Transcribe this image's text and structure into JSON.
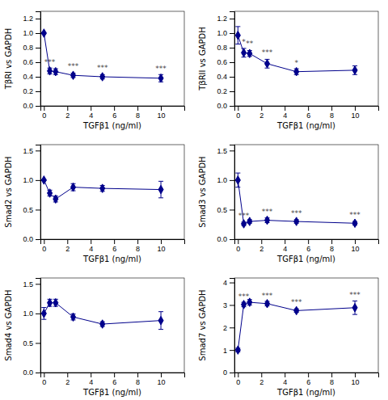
{
  "chart_data": [
    {
      "type": "line",
      "marker": "diamond",
      "color": "#00008B",
      "grid": false,
      "xlabel": "TGFβ1 (ng/ml)",
      "ylabel": "TβRI vs GAPDH",
      "x": [
        0,
        0.5,
        1,
        2.5,
        5,
        10
      ],
      "values": [
        1.0,
        0.48,
        0.47,
        0.42,
        0.4,
        0.38
      ],
      "yerr": [
        0.01,
        0.04,
        0.04,
        0.03,
        0.03,
        0.05
      ],
      "xlim": [
        -0.3,
        12
      ],
      "xticks": [
        0,
        2,
        4,
        6,
        8,
        10
      ],
      "ylim": [
        0,
        1.3
      ],
      "yticks": [
        {
          "value": 0,
          "label": "0.0"
        },
        {
          "value": 0.2,
          "label": "0.2"
        },
        {
          "value": 0.4,
          "label": "0.4"
        },
        {
          "value": 0.6,
          "label": "0.6"
        },
        {
          "value": 0.8,
          "label": "0.8"
        },
        {
          "value": 1.0,
          "label": "1.0"
        },
        {
          "value": 1.2,
          "label": "1.2"
        }
      ],
      "annotations": [
        {
          "x": 0.5,
          "y": 0.57,
          "text": "***"
        },
        {
          "x": 2.5,
          "y": 0.51,
          "text": "***"
        },
        {
          "x": 5,
          "y": 0.49,
          "text": "***"
        },
        {
          "x": 10,
          "y": 0.48,
          "text": "***"
        }
      ]
    },
    {
      "type": "line",
      "marker": "diamond",
      "color": "#00008B",
      "grid": false,
      "xlabel": "TGFβ1 (ng/ml)",
      "ylabel": "TβRII vs GAPDH",
      "x": [
        0,
        0.5,
        1,
        2.5,
        5,
        10
      ],
      "values": [
        0.97,
        0.73,
        0.72,
        0.58,
        0.47,
        0.49
      ],
      "yerr": [
        0.12,
        0.06,
        0.04,
        0.06,
        0.04,
        0.06
      ],
      "xlim": [
        -0.3,
        12
      ],
      "xticks": [
        0,
        2,
        4,
        6,
        8,
        10
      ],
      "ylim": [
        0,
        1.3
      ],
      "yticks": [
        {
          "value": 0,
          "label": "0.0"
        },
        {
          "value": 0.2,
          "label": "0.2"
        },
        {
          "value": 0.4,
          "label": "0.4"
        },
        {
          "value": 0.6,
          "label": "0.6"
        },
        {
          "value": 0.8,
          "label": "0.8"
        },
        {
          "value": 1.0,
          "label": "1.0"
        },
        {
          "value": 1.2,
          "label": "1.2"
        }
      ],
      "annotations": [
        {
          "x": 0.5,
          "y": 0.85,
          "text": "*"
        },
        {
          "x": 1.0,
          "y": 0.82,
          "text": "**"
        },
        {
          "x": 2.5,
          "y": 0.7,
          "text": "***"
        },
        {
          "x": 5,
          "y": 0.56,
          "text": "*"
        }
      ]
    },
    {
      "type": "line",
      "marker": "diamond",
      "color": "#00008B",
      "grid": false,
      "xlabel": "TGFβ1 (ng/ml)",
      "ylabel": "Smad2 vs GAPDH",
      "x": [
        0,
        0.5,
        1,
        2.5,
        5,
        10
      ],
      "values": [
        1.0,
        0.78,
        0.68,
        0.88,
        0.86,
        0.84
      ],
      "yerr": [
        0.01,
        0.05,
        0.05,
        0.06,
        0.05,
        0.14
      ],
      "xlim": [
        -0.3,
        12
      ],
      "xticks": [
        0,
        2,
        4,
        6,
        8,
        10
      ],
      "ylim": [
        0,
        1.6
      ],
      "yticks": [
        {
          "value": 0,
          "label": "0.0"
        },
        {
          "value": 0.5,
          "label": "0.5"
        },
        {
          "value": 1.0,
          "label": "1.0"
        },
        {
          "value": 1.5,
          "label": "1.5"
        }
      ]
    },
    {
      "type": "line",
      "marker": "diamond",
      "color": "#00008B",
      "grid": false,
      "xlabel": "TGFβ1 (ng/ml)",
      "ylabel": "Smad3 vs GAPDH",
      "x": [
        0,
        0.5,
        1,
        2.5,
        5,
        10
      ],
      "values": [
        1.0,
        0.26,
        0.3,
        0.32,
        0.3,
        0.27
      ],
      "yerr": [
        0.12,
        0.03,
        0.03,
        0.04,
        0.03,
        0.03
      ],
      "xlim": [
        -0.3,
        12
      ],
      "xticks": [
        0,
        2,
        4,
        6,
        8,
        10
      ],
      "ylim": [
        0,
        1.6
      ],
      "yticks": [
        {
          "value": 0,
          "label": "0.0"
        },
        {
          "value": 0.5,
          "label": "0.5"
        },
        {
          "value": 1.0,
          "label": "1.0"
        },
        {
          "value": 1.5,
          "label": "1.5"
        }
      ],
      "annotations": [
        {
          "x": 0.5,
          "y": 0.36,
          "text": "***"
        },
        {
          "x": 2.5,
          "y": 0.42,
          "text": "***"
        },
        {
          "x": 5,
          "y": 0.4,
          "text": "***"
        },
        {
          "x": 10,
          "y": 0.37,
          "text": "***"
        }
      ]
    },
    {
      "type": "line",
      "marker": "diamond",
      "color": "#00008B",
      "grid": false,
      "xlabel": "TGFβ1 (ng/ml)",
      "ylabel": "Smad4 vs GAPDH",
      "x": [
        0,
        0.5,
        1,
        2.5,
        5,
        10
      ],
      "values": [
        1.0,
        1.18,
        1.18,
        0.94,
        0.82,
        0.88
      ],
      "yerr": [
        0.1,
        0.06,
        0.06,
        0.05,
        0.04,
        0.15
      ],
      "xlim": [
        -0.3,
        12
      ],
      "xticks": [
        0,
        2,
        4,
        6,
        8,
        10
      ],
      "ylim": [
        0,
        1.6
      ],
      "yticks": [
        {
          "value": 0,
          "label": "0.0"
        },
        {
          "value": 0.5,
          "label": "0.5"
        },
        {
          "value": 1.0,
          "label": "1.0"
        },
        {
          "value": 1.5,
          "label": "1.5"
        }
      ]
    },
    {
      "type": "line",
      "marker": "diamond",
      "color": "#00008B",
      "grid": false,
      "xlabel": "TGFβ1 (ng/ml)",
      "ylabel": "Smad7 vs GAPDH",
      "x": [
        0,
        0.5,
        1,
        2.5,
        5,
        10
      ],
      "values": [
        1.0,
        3.02,
        3.12,
        3.06,
        2.75,
        2.88
      ],
      "yerr": [
        0.08,
        0.1,
        0.12,
        0.1,
        0.08,
        0.3
      ],
      "xlim": [
        -0.3,
        12
      ],
      "xticks": [
        0,
        2,
        4,
        6,
        8,
        10
      ],
      "ylim": [
        0,
        4.2
      ],
      "yticks": [
        0,
        1,
        2,
        3,
        4
      ],
      "annotations": [
        {
          "x": 0.5,
          "y": 3.28,
          "text": "***"
        },
        {
          "x": 2.5,
          "y": 3.32,
          "text": "***"
        },
        {
          "x": 5,
          "y": 3.0,
          "text": "***"
        },
        {
          "x": 10,
          "y": 3.35,
          "text": "***"
        }
      ]
    }
  ]
}
